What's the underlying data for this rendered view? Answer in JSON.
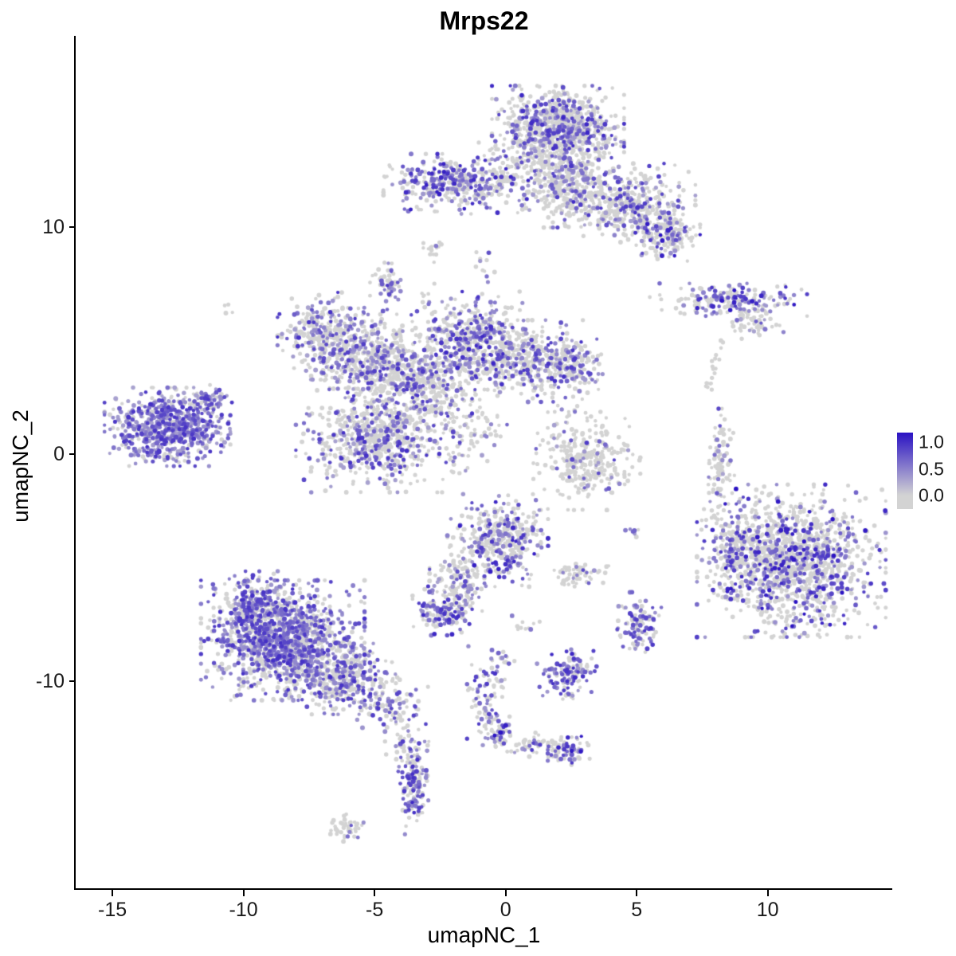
{
  "title": "Mrps22",
  "axes": {
    "x": {
      "label": "umapNC_1",
      "ticks": [
        -15,
        -10,
        -5,
        0,
        5,
        10
      ]
    },
    "y": {
      "label": "umapNC_2",
      "ticks": [
        10,
        0,
        -10
      ]
    }
  },
  "legend": {
    "ticks": [
      "1.0",
      "0.5",
      "0.0"
    ],
    "color_high": "#2A12C3",
    "color_low": "#D3D3D3"
  },
  "chart_data": {
    "type": "scatter",
    "title": "Mrps22",
    "xlabel": "umapNC_1",
    "ylabel": "umapNC_2",
    "xlim": [
      -16.4,
      14.75
    ],
    "ylim": [
      -19.12,
      18.42
    ],
    "legend_values": [
      1.0,
      0.5,
      0.0
    ],
    "point_color_low": "#D3D3D3",
    "point_color_high": "#2A12C3",
    "point_radius": 2.4,
    "seed": 20240522,
    "cluster_fields": [
      "cx",
      "cy",
      "sx",
      "sy",
      "n",
      "frac_expressed",
      "t_min",
      "t_max"
    ],
    "clusters": [
      [
        2.0,
        14.3,
        1.05,
        0.8,
        900,
        0.3,
        0.25,
        0.9
      ],
      [
        2.3,
        11.9,
        0.7,
        0.8,
        350,
        0.22,
        0.25,
        0.8
      ],
      [
        4.6,
        11.0,
        1.1,
        0.75,
        420,
        0.26,
        0.25,
        0.9
      ],
      [
        6.1,
        9.7,
        0.55,
        0.5,
        170,
        0.3,
        0.3,
        1.0
      ],
      [
        -1.9,
        11.9,
        1.15,
        0.55,
        380,
        0.42,
        0.3,
        0.95
      ],
      [
        0.3,
        12.4,
        0.8,
        0.55,
        70,
        0.15,
        0.25,
        0.7
      ],
      [
        8.5,
        6.8,
        1.25,
        0.3,
        190,
        0.45,
        0.3,
        1.0
      ],
      [
        9.4,
        5.8,
        0.5,
        0.3,
        55,
        0.2,
        0.25,
        0.7
      ],
      [
        7.75,
        3.0,
        0.15,
        0.2,
        8,
        0.1,
        0.3,
        0.6
      ],
      [
        -6.9,
        5.2,
        0.75,
        0.8,
        320,
        0.36,
        0.25,
        0.85
      ],
      [
        -4.9,
        4.2,
        0.9,
        0.9,
        450,
        0.34,
        0.25,
        0.85
      ],
      [
        -3.2,
        3.1,
        0.8,
        0.8,
        350,
        0.3,
        0.25,
        0.85
      ],
      [
        -1.4,
        5.0,
        0.9,
        0.9,
        450,
        0.4,
        0.3,
        0.9
      ],
      [
        0.9,
        4.1,
        1.1,
        0.75,
        400,
        0.3,
        0.25,
        0.85
      ],
      [
        2.5,
        4.0,
        0.5,
        0.55,
        130,
        0.35,
        0.3,
        0.85
      ],
      [
        -5.0,
        0.6,
        1.25,
        0.95,
        650,
        0.35,
        0.25,
        0.85
      ],
      [
        -4.5,
        7.5,
        0.28,
        0.5,
        60,
        0.45,
        0.3,
        0.8
      ],
      [
        -2.75,
        9.05,
        0.2,
        0.25,
        18,
        0.1,
        0.3,
        0.6
      ],
      [
        -1.3,
        1.2,
        0.8,
        1.1,
        100,
        0.25,
        0.25,
        0.8
      ],
      [
        -12.9,
        1.2,
        1.0,
        0.72,
        700,
        0.75,
        0.25,
        0.85
      ],
      [
        -11.4,
        2.3,
        0.4,
        0.35,
        70,
        0.6,
        0.25,
        0.8
      ],
      [
        3.1,
        -0.3,
        0.85,
        0.9,
        300,
        0.12,
        0.25,
        0.8
      ],
      [
        8.2,
        -0.4,
        0.22,
        1.0,
        100,
        0.12,
        0.25,
        0.75
      ],
      [
        8.05,
        4.4,
        0.12,
        0.45,
        12,
        0.15,
        0.3,
        0.6
      ],
      [
        10.9,
        -4.7,
        1.5,
        1.4,
        1400,
        0.3,
        0.3,
        1.0
      ],
      [
        8.7,
        -4.1,
        0.35,
        0.8,
        100,
        0.3,
        0.3,
        0.9
      ],
      [
        -0.3,
        -3.8,
        0.8,
        0.85,
        400,
        0.4,
        0.3,
        0.95
      ],
      [
        -1.7,
        -5.6,
        0.5,
        0.6,
        120,
        0.25,
        0.25,
        0.8
      ],
      [
        -2.35,
        -6.9,
        0.5,
        0.45,
        150,
        0.5,
        0.3,
        0.9
      ],
      [
        2.85,
        -5.3,
        0.45,
        0.3,
        60,
        0.15,
        0.3,
        0.8
      ],
      [
        5.1,
        -7.4,
        0.35,
        0.55,
        110,
        0.55,
        0.3,
        0.85
      ],
      [
        -8.5,
        -8.2,
        1.3,
        1.1,
        1300,
        0.55,
        0.3,
        0.85
      ],
      [
        -9.7,
        -6.6,
        0.6,
        0.6,
        200,
        0.5,
        0.3,
        0.85
      ],
      [
        -6.2,
        -9.9,
        0.9,
        0.65,
        350,
        0.45,
        0.3,
        0.85
      ],
      [
        -4.4,
        -11.2,
        0.6,
        0.45,
        90,
        0.35,
        0.3,
        0.8
      ],
      [
        -4.0,
        -12.7,
        0.25,
        0.5,
        25,
        0.3,
        0.3,
        0.7
      ],
      [
        2.4,
        -9.8,
        0.5,
        0.5,
        130,
        0.5,
        0.3,
        0.9
      ],
      [
        -0.75,
        -10.5,
        0.3,
        0.85,
        85,
        0.4,
        0.3,
        0.85
      ],
      [
        -0.3,
        -12.2,
        0.3,
        0.35,
        60,
        0.55,
        0.3,
        1.0
      ],
      [
        1.3,
        -12.8,
        0.6,
        0.22,
        60,
        0.3,
        0.3,
        0.8
      ],
      [
        2.45,
        -13.1,
        0.35,
        0.3,
        65,
        0.5,
        0.3,
        1.0
      ],
      [
        -3.5,
        -14.7,
        0.28,
        0.85,
        160,
        0.6,
        0.3,
        0.9
      ],
      [
        -6.05,
        -16.5,
        0.3,
        0.3,
        45,
        0.15,
        0.25,
        0.7
      ],
      [
        -10.6,
        6.3,
        0.12,
        0.12,
        4,
        0.0,
        0.0,
        0.0
      ],
      [
        4.8,
        -3.5,
        0.2,
        0.15,
        7,
        0.5,
        0.3,
        0.8
      ],
      [
        0.7,
        -7.6,
        0.25,
        0.2,
        10,
        0.3,
        0.3,
        0.7
      ],
      [
        -2.9,
        6.9,
        0.15,
        0.3,
        8,
        0.2,
        0.3,
        0.6
      ],
      [
        -0.9,
        8.3,
        0.2,
        0.45,
        12,
        0.25,
        0.3,
        0.7
      ],
      [
        2.6,
        1.8,
        0.3,
        0.6,
        14,
        0.2,
        0.3,
        0.7
      ],
      [
        -3.4,
        -13.3,
        0.15,
        0.25,
        8,
        0.3,
        0.3,
        0.7
      ],
      [
        0.0,
        -9.0,
        0.3,
        0.3,
        12,
        0.3,
        0.3,
        0.7
      ]
    ]
  }
}
